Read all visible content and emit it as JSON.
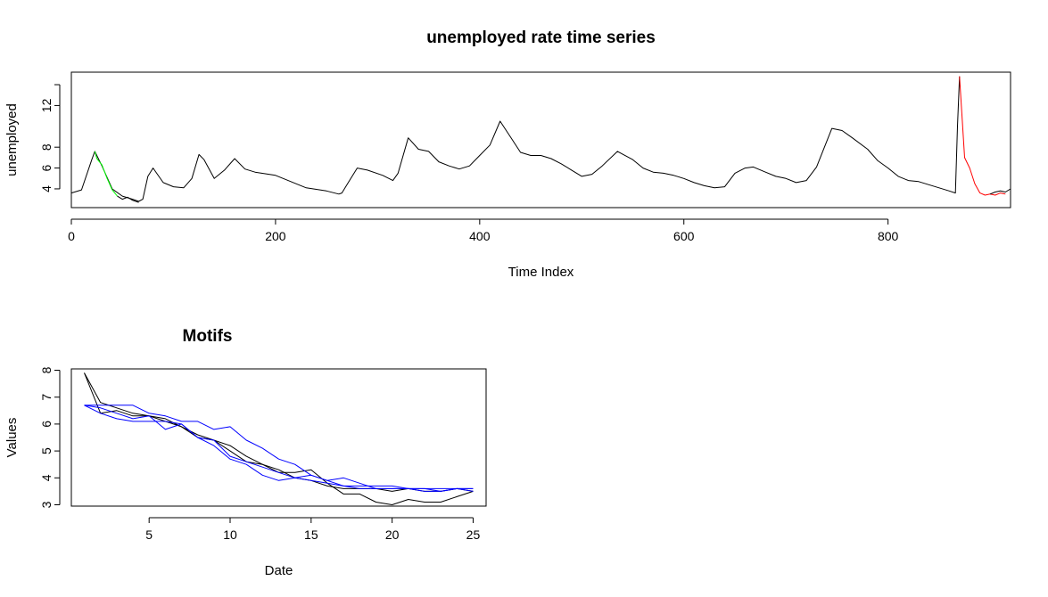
{
  "chart_data": [
    {
      "type": "line",
      "title": "unemployed rate time series",
      "xlabel": "Time Index",
      "ylabel": "unemployed",
      "xlim": [
        0,
        920
      ],
      "ylim": [
        2.2,
        15.2
      ],
      "xticks": [
        "0",
        "200",
        "400",
        "600",
        "800"
      ],
      "yticks": [
        "4",
        "6",
        "8",
        "12"
      ],
      "grid": false,
      "legend": "none",
      "series": [
        {
          "color": "#000000",
          "x": [
            0,
            10,
            20,
            23,
            30,
            40,
            50,
            60,
            66,
            70,
            75,
            80,
            90,
            100,
            110,
            118,
            125,
            130,
            140,
            150,
            160,
            170,
            180,
            200,
            230,
            250,
            262,
            265,
            270,
            280,
            290,
            305,
            315,
            320,
            330,
            340,
            350,
            360,
            370,
            380,
            390,
            400,
            410,
            420,
            430,
            440,
            450,
            460,
            470,
            480,
            490,
            500,
            510,
            520,
            535,
            550,
            560,
            570,
            580,
            590,
            600,
            610,
            620,
            630,
            640,
            650,
            660,
            668,
            680,
            690,
            700,
            710,
            720,
            730,
            745,
            755,
            765,
            780,
            790,
            800,
            810,
            820,
            830,
            840,
            850,
            860,
            866,
            868,
            870
          ],
          "values": [
            3.6,
            3.9,
            6.8,
            7.6,
            6.2,
            4.0,
            3.3,
            3.0,
            2.8,
            3.0,
            5.2,
            6.0,
            4.6,
            4.2,
            4.1,
            5.0,
            7.3,
            6.8,
            5.0,
            5.8,
            6.9,
            5.9,
            5.6,
            5.3,
            4.1,
            3.8,
            3.5,
            3.6,
            4.4,
            6.0,
            5.8,
            5.3,
            4.8,
            5.5,
            8.9,
            7.8,
            7.6,
            6.6,
            6.2,
            5.9,
            6.2,
            7.2,
            8.2,
            10.5,
            9.0,
            7.5,
            7.2,
            7.2,
            6.9,
            6.4,
            5.8,
            5.2,
            5.4,
            6.2,
            7.6,
            6.8,
            6.0,
            5.6,
            5.5,
            5.3,
            5.0,
            4.6,
            4.3,
            4.1,
            4.2,
            5.5,
            6.0,
            6.1,
            5.6,
            5.2,
            5.0,
            4.6,
            4.8,
            6.1,
            9.8,
            9.6,
            8.9,
            7.8,
            6.7,
            6.0,
            5.2,
            4.8,
            4.7,
            4.4,
            4.1,
            3.8,
            3.6,
            10.0,
            14.8
          ]
        },
        {
          "color": "#00ff00",
          "x": [
            23,
            25,
            30,
            35,
            40,
            45
          ],
          "values": [
            7.6,
            6.9,
            6.3,
            5.0,
            3.9,
            3.3
          ]
        },
        {
          "color": "#000000",
          "x": [
            45,
            50,
            55,
            60,
            66
          ],
          "values": [
            3.3,
            3.0,
            3.2,
            2.9,
            2.7
          ]
        },
        {
          "color": "#ff0000",
          "x": [
            870,
            875,
            880,
            885,
            890,
            895,
            900,
            905,
            910,
            915
          ],
          "values": [
            14.8,
            7.0,
            6.0,
            4.5,
            3.6,
            3.4,
            3.5,
            3.4,
            3.6,
            3.5
          ]
        },
        {
          "color": "#000000",
          "x": [
            900,
            905,
            910,
            915,
            920
          ],
          "values": [
            3.5,
            3.7,
            3.8,
            3.7,
            4.0
          ]
        }
      ]
    },
    {
      "type": "line",
      "title": "Motifs",
      "xlabel": "Date",
      "ylabel": "Values",
      "xlim": [
        0.2,
        25.8
      ],
      "ylim": [
        2.95,
        8.05
      ],
      "xticks": [
        "5",
        "10",
        "15",
        "20",
        "25"
      ],
      "yticks": [
        "3",
        "4",
        "5",
        "6",
        "7",
        "8"
      ],
      "grid": false,
      "legend": "none",
      "series": [
        {
          "color": "#000000",
          "x": [
            1,
            2,
            3,
            4,
            5,
            6,
            7,
            8,
            9,
            10,
            11,
            12,
            13,
            14,
            15,
            16,
            17,
            18,
            19,
            20,
            21,
            22,
            23,
            24,
            25
          ],
          "values": [
            7.9,
            6.4,
            6.5,
            6.3,
            6.3,
            6.1,
            5.9,
            5.6,
            5.4,
            5.2,
            4.8,
            4.5,
            4.2,
            4.2,
            4.3,
            3.8,
            3.4,
            3.4,
            3.1,
            3.0,
            3.2,
            3.1,
            3.1,
            3.3,
            3.5
          ]
        },
        {
          "color": "#000000",
          "x": [
            1,
            2,
            3,
            4,
            5,
            6,
            7,
            8,
            9,
            10,
            11,
            12,
            13,
            14,
            15,
            16,
            17,
            18,
            19,
            20,
            21,
            22,
            23,
            24,
            25
          ],
          "values": [
            7.9,
            6.8,
            6.6,
            6.4,
            6.3,
            6.2,
            5.9,
            5.5,
            5.4,
            5.0,
            4.6,
            4.5,
            4.3,
            4.0,
            3.9,
            3.7,
            3.6,
            3.6,
            3.6,
            3.5,
            3.6,
            3.5,
            3.5,
            3.6,
            3.5
          ]
        },
        {
          "color": "#0000ff",
          "x": [
            1,
            2,
            3,
            4,
            5,
            6,
            7,
            8,
            9,
            10,
            11,
            12,
            13,
            14,
            15,
            16,
            17,
            18,
            19,
            20,
            21,
            22,
            23,
            24,
            25
          ],
          "values": [
            6.7,
            6.7,
            6.7,
            6.7,
            6.4,
            6.3,
            6.1,
            6.1,
            5.8,
            5.9,
            5.4,
            5.1,
            4.7,
            4.5,
            4.1,
            3.9,
            4.0,
            3.8,
            3.6,
            3.6,
            3.6,
            3.6,
            3.5,
            3.6,
            3.6
          ]
        },
        {
          "color": "#0000ff",
          "x": [
            1,
            2,
            3,
            4,
            5,
            6,
            7,
            8,
            9,
            10,
            11,
            12,
            13,
            14,
            15,
            16,
            17,
            18,
            19,
            20,
            21,
            22,
            23,
            24,
            25
          ],
          "values": [
            6.7,
            6.4,
            6.2,
            6.1,
            6.1,
            6.1,
            6.0,
            5.5,
            5.4,
            4.8,
            4.6,
            4.4,
            4.2,
            4.0,
            4.1,
            3.9,
            3.7,
            3.6,
            3.6,
            3.6,
            3.6,
            3.5,
            3.5,
            3.6,
            3.5
          ]
        },
        {
          "color": "#0000ff",
          "x": [
            1,
            2,
            3,
            4,
            5,
            6,
            7,
            8,
            9,
            10,
            11,
            12,
            13,
            14,
            15,
            16,
            17,
            18,
            19,
            20,
            21,
            22,
            23,
            24,
            25
          ],
          "values": [
            6.7,
            6.6,
            6.4,
            6.2,
            6.3,
            5.8,
            6.0,
            5.5,
            5.2,
            4.7,
            4.5,
            4.1,
            3.9,
            4.0,
            3.9,
            3.8,
            3.7,
            3.7,
            3.7,
            3.7,
            3.6,
            3.6,
            3.6,
            3.6,
            3.6
          ]
        }
      ]
    }
  ]
}
